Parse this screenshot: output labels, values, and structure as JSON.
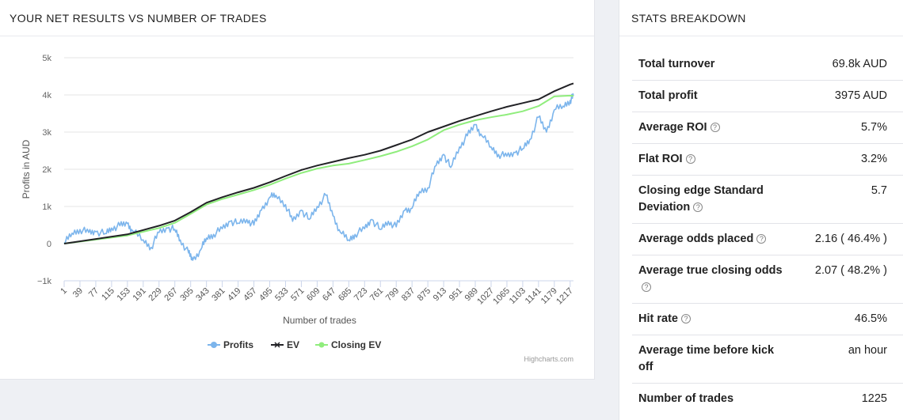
{
  "left_panel": {
    "title": "YOUR NET RESULTS VS NUMBER OF TRADES",
    "credit": "Highcharts.com"
  },
  "right_panel": {
    "title": "STATS BREAKDOWN"
  },
  "stats": [
    {
      "label": "Total turnover",
      "value": "69.8k AUD",
      "help": false
    },
    {
      "label": "Total profit",
      "value": "3975 AUD",
      "help": false
    },
    {
      "label": "Average ROI",
      "value": "5.7%",
      "help": true
    },
    {
      "label": "Flat ROI",
      "value": "3.2%",
      "help": true
    },
    {
      "label": "Closing edge Standard Deviation",
      "value": "5.7",
      "help": true
    },
    {
      "label": "Average odds placed",
      "value": "2.16 ( 46.4% )",
      "help": true
    },
    {
      "label": "Average true closing odds",
      "value": "2.07 ( 48.2% )",
      "help": true
    },
    {
      "label": "Hit rate",
      "value": "46.5%",
      "help": true
    },
    {
      "label": "Average time before kick off",
      "value": "an hour",
      "help": false
    },
    {
      "label": "Number of trades",
      "value": "1225",
      "help": false
    }
  ],
  "chart_data": {
    "type": "line",
    "xlabel": "Number of trades",
    "ylabel": "Profits in AUD",
    "ylim": [
      -1000,
      5000
    ],
    "yticks": [
      -1000,
      0,
      1000,
      2000,
      3000,
      4000,
      5000
    ],
    "ytick_labels": [
      "−1k",
      "0",
      "1k",
      "2k",
      "3k",
      "4k",
      "5k"
    ],
    "xlim": [
      1,
      1225
    ],
    "xticks": [
      1,
      39,
      77,
      115,
      153,
      191,
      229,
      267,
      305,
      343,
      381,
      419,
      457,
      495,
      533,
      571,
      609,
      647,
      685,
      723,
      761,
      799,
      837,
      875,
      913,
      951,
      989,
      1027,
      1065,
      1103,
      1141,
      1179,
      1217
    ],
    "grid": true,
    "legend_position": "bottom-center",
    "series": [
      {
        "name": "Profits",
        "color": "#7cb5ec",
        "points": [
          [
            1,
            0
          ],
          [
            20,
            280
          ],
          [
            39,
            380
          ],
          [
            60,
            300
          ],
          [
            77,
            320
          ],
          [
            100,
            270
          ],
          [
            115,
            420
          ],
          [
            135,
            480
          ],
          [
            153,
            540
          ],
          [
            165,
            350
          ],
          [
            191,
            100
          ],
          [
            210,
            -100
          ],
          [
            229,
            300
          ],
          [
            250,
            420
          ],
          [
            267,
            380
          ],
          [
            280,
            100
          ],
          [
            300,
            -250
          ],
          [
            310,
            -450
          ],
          [
            330,
            -150
          ],
          [
            343,
            150
          ],
          [
            360,
            250
          ],
          [
            381,
            400
          ],
          [
            400,
            600
          ],
          [
            419,
            550
          ],
          [
            440,
            650
          ],
          [
            457,
            500
          ],
          [
            475,
            900
          ],
          [
            495,
            1250
          ],
          [
            510,
            1300
          ],
          [
            533,
            1050
          ],
          [
            550,
            600
          ],
          [
            571,
            900
          ],
          [
            590,
            650
          ],
          [
            609,
            1000
          ],
          [
            630,
            1300
          ],
          [
            647,
            750
          ],
          [
            665,
            300
          ],
          [
            685,
            100
          ],
          [
            700,
            250
          ],
          [
            723,
            400
          ],
          [
            740,
            650
          ],
          [
            761,
            380
          ],
          [
            780,
            600
          ],
          [
            799,
            450
          ],
          [
            820,
            900
          ],
          [
            837,
            950
          ],
          [
            855,
            1400
          ],
          [
            875,
            1500
          ],
          [
            895,
            2100
          ],
          [
            913,
            2400
          ],
          [
            930,
            2050
          ],
          [
            951,
            2600
          ],
          [
            970,
            2900
          ],
          [
            989,
            3200
          ],
          [
            1005,
            2900
          ],
          [
            1027,
            2600
          ],
          [
            1045,
            2400
          ],
          [
            1065,
            2350
          ],
          [
            1085,
            2450
          ],
          [
            1103,
            2550
          ],
          [
            1120,
            2800
          ],
          [
            1141,
            3400
          ],
          [
            1160,
            3000
          ],
          [
            1179,
            3600
          ],
          [
            1200,
            3700
          ],
          [
            1217,
            3850
          ],
          [
            1225,
            3975
          ]
        ]
      },
      {
        "name": "EV",
        "color": "#222226",
        "points": [
          [
            1,
            0
          ],
          [
            153,
            250
          ],
          [
            229,
            480
          ],
          [
            267,
            620
          ],
          [
            305,
            850
          ],
          [
            343,
            1100
          ],
          [
            381,
            1250
          ],
          [
            419,
            1380
          ],
          [
            457,
            1500
          ],
          [
            495,
            1650
          ],
          [
            533,
            1820
          ],
          [
            571,
            1980
          ],
          [
            609,
            2100
          ],
          [
            647,
            2200
          ],
          [
            685,
            2300
          ],
          [
            723,
            2390
          ],
          [
            761,
            2500
          ],
          [
            799,
            2650
          ],
          [
            837,
            2800
          ],
          [
            875,
            3000
          ],
          [
            913,
            3150
          ],
          [
            951,
            3300
          ],
          [
            989,
            3430
          ],
          [
            1027,
            3560
          ],
          [
            1065,
            3680
          ],
          [
            1103,
            3780
          ],
          [
            1141,
            3880
          ],
          [
            1179,
            4100
          ],
          [
            1217,
            4280
          ],
          [
            1225,
            4310
          ]
        ]
      },
      {
        "name": "Closing EV",
        "color": "#90ed7d",
        "points": [
          [
            1,
            0
          ],
          [
            153,
            220
          ],
          [
            229,
            420
          ],
          [
            267,
            560
          ],
          [
            305,
            800
          ],
          [
            343,
            1050
          ],
          [
            381,
            1200
          ],
          [
            419,
            1320
          ],
          [
            457,
            1440
          ],
          [
            495,
            1580
          ],
          [
            533,
            1750
          ],
          [
            571,
            1900
          ],
          [
            609,
            2020
          ],
          [
            647,
            2100
          ],
          [
            685,
            2150
          ],
          [
            723,
            2250
          ],
          [
            761,
            2350
          ],
          [
            799,
            2470
          ],
          [
            837,
            2620
          ],
          [
            875,
            2800
          ],
          [
            913,
            3050
          ],
          [
            951,
            3200
          ],
          [
            989,
            3320
          ],
          [
            1027,
            3400
          ],
          [
            1065,
            3470
          ],
          [
            1103,
            3560
          ],
          [
            1141,
            3700
          ],
          [
            1179,
            3960
          ],
          [
            1217,
            3980
          ],
          [
            1225,
            3975
          ]
        ]
      }
    ]
  }
}
